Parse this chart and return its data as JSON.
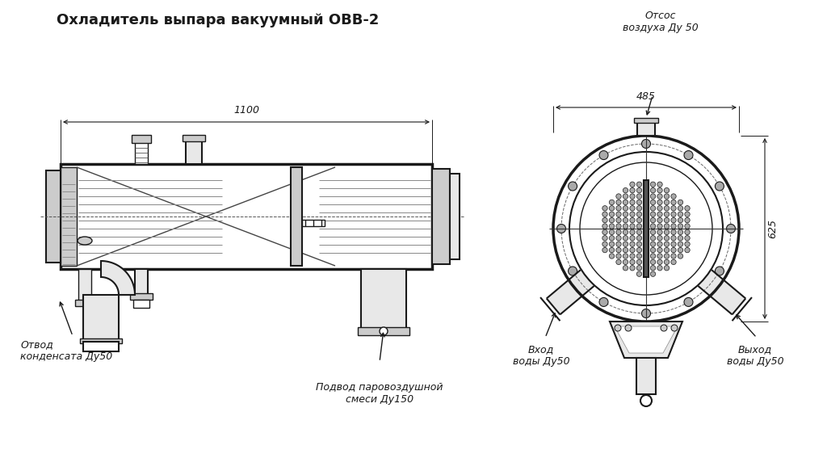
{
  "title": "Охладитель выпара вакуумный ОВВ-2",
  "line_color": "#1a1a1a",
  "title_font_size": 13,
  "dim_font_size": 9,
  "annot_font_size": 9,
  "dim_1100": "1100",
  "dim_485": "485",
  "dim_625": "625",
  "label_otvod": "Отвод\nконденсата Ду50",
  "label_podvod": "Подвод паровоздушной\nсмеси Ду150",
  "label_otsос": "Отсос\nвоздуха Ду 50",
  "label_vhod": "Вход\nводы Ду50",
  "label_vyhod": "Выход\nводы Ду50"
}
